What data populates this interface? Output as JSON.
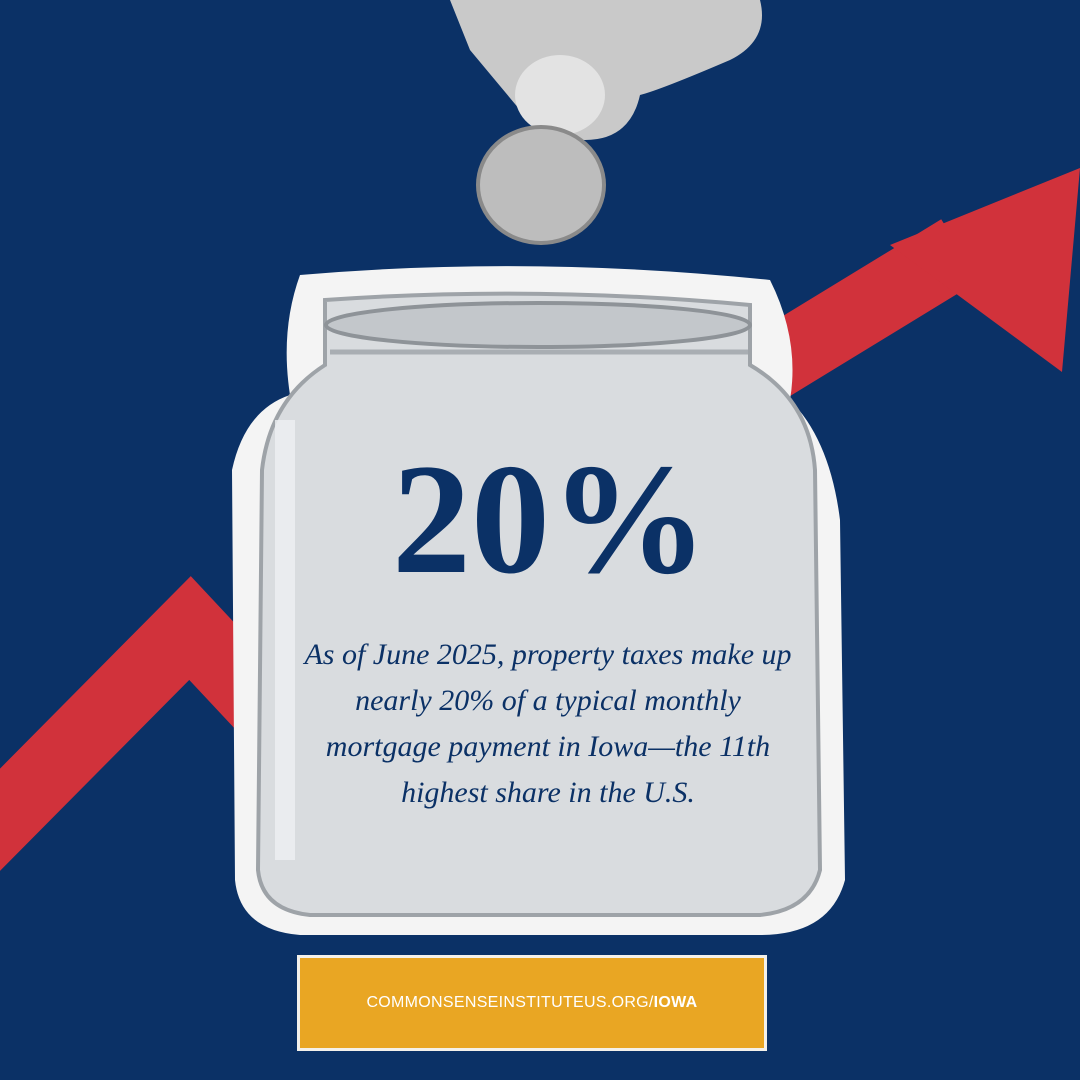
{
  "headline": "20%",
  "body": "As of June 2025, property taxes make up nearly 20% of a typical monthly mortgage payment in Iowa—the 11th highest share in the U.S.",
  "footer": {
    "url": "COMMONSENSEINSTITUTEUS.ORG/",
    "region": "IOWA"
  }
}
